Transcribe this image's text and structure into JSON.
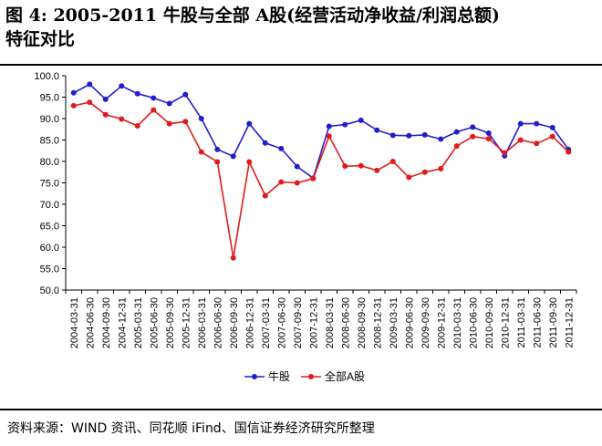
{
  "figure": {
    "title_line1": "图 4: 2005-2011 牛股与全部 A股(经营活动净收益/利润总额)",
    "title_line2": "特征对比",
    "source": "资料来源：WIND 资讯、同花顺 iFind、国信证券经济研究所整理"
  },
  "chart_data": {
    "type": "line",
    "x": [
      "2004-03-31",
      "2004-06-30",
      "2004-09-30",
      "2004-12-31",
      "2005-03-31",
      "2005-06-30",
      "2005-09-30",
      "2005-12-31",
      "2006-03-31",
      "2006-06-30",
      "2006-09-30",
      "2006-12-31",
      "2007-03-31",
      "2007-06-30",
      "2007-09-30",
      "2007-12-31",
      "2008-03-31",
      "2008-06-30",
      "2008-09-30",
      "2008-12-31",
      "2009-03-31",
      "2009-06-30",
      "2009-09-30",
      "2009-12-31",
      "2010-03-31",
      "2010-06-30",
      "2010-09-30",
      "2010-12-31",
      "2011-03-31",
      "2011-06-30",
      "2011-09-30",
      "2011-12-31"
    ],
    "ylim": [
      50,
      100
    ],
    "yticks": [
      "50.0",
      "55.0",
      "60.0",
      "65.0",
      "70.0",
      "75.0",
      "80.0",
      "85.0",
      "90.0",
      "95.0",
      "100.0"
    ],
    "legend_position": "bottom",
    "grid": false,
    "series": [
      {
        "name": "牛股",
        "color": "#1f1fd0",
        "values": [
          96.0,
          98.0,
          94.5,
          97.6,
          95.8,
          94.8,
          93.5,
          95.6,
          90.0,
          82.8,
          81.2,
          88.8,
          84.3,
          83.0,
          78.8,
          76.1,
          88.2,
          88.6,
          89.6,
          87.3,
          86.1,
          86.0,
          86.2,
          85.2,
          86.9,
          88.0,
          86.6,
          81.3,
          88.8,
          88.8,
          87.9,
          82.8
        ]
      },
      {
        "name": "全部A股",
        "color": "#e31a1c",
        "values": [
          93.0,
          93.8,
          90.9,
          89.9,
          88.3,
          92.0,
          88.8,
          89.3,
          82.2,
          79.9,
          57.5,
          79.9,
          72.0,
          75.2,
          75.0,
          76.0,
          85.9,
          78.9,
          79.0,
          77.9,
          80.0,
          76.3,
          77.5,
          78.3,
          83.6,
          85.8,
          85.3,
          82.0,
          85.0,
          84.2,
          85.8,
          82.2
        ]
      }
    ]
  }
}
